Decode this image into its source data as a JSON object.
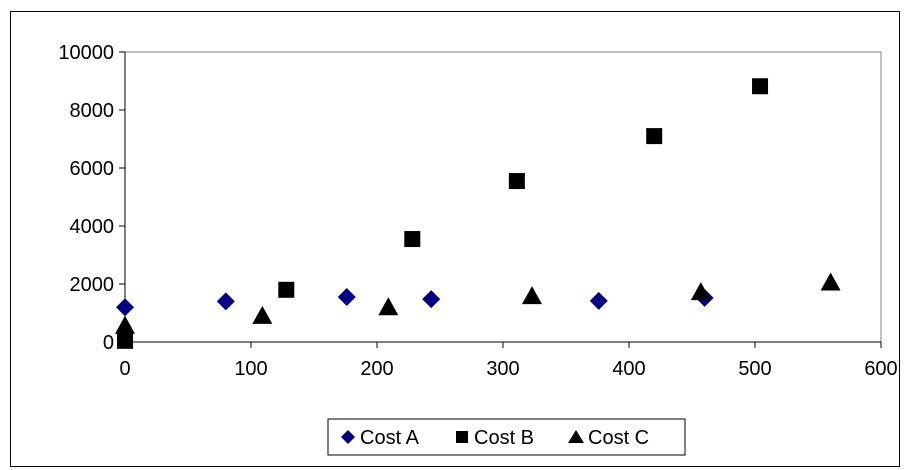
{
  "chart_data": {
    "type": "scatter",
    "title": "",
    "xlabel": "",
    "ylabel": "",
    "xlim": [
      0,
      600
    ],
    "ylim": [
      0,
      10000
    ],
    "x_ticks": [
      0,
      100,
      200,
      300,
      400,
      500,
      600
    ],
    "y_ticks": [
      0,
      2000,
      4000,
      6000,
      8000,
      10000
    ],
    "grid": false,
    "legend_position": "bottom",
    "series": [
      {
        "name": "Cost A",
        "marker": "diamond",
        "color": "#000080",
        "x": [
          0,
          80,
          176,
          243,
          376,
          460
        ],
        "y": [
          1200,
          1400,
          1550,
          1480,
          1420,
          1520
        ]
      },
      {
        "name": "Cost B",
        "marker": "square",
        "color": "#000000",
        "x": [
          0,
          128,
          228,
          311,
          420,
          504
        ],
        "y": [
          40,
          1800,
          3550,
          5550,
          7100,
          8820
        ]
      },
      {
        "name": "Cost C",
        "marker": "triangle",
        "color": "#000000",
        "x": [
          0,
          109,
          209,
          323,
          457,
          560
        ],
        "y": [
          560,
          900,
          1200,
          1580,
          1720,
          2050
        ]
      }
    ]
  }
}
